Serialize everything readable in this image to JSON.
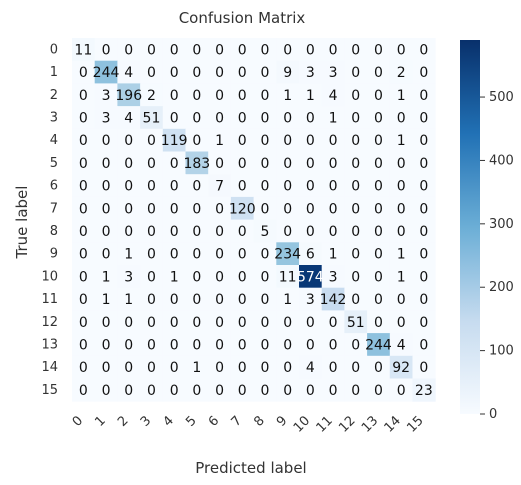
{
  "chart_data": {
    "type": "heatmap",
    "title": "Confusion Matrix",
    "xlabel": "Predicted label",
    "ylabel": "True label",
    "x_tick_labels": [
      "0",
      "1",
      "2",
      "3",
      "4",
      "5",
      "6",
      "7",
      "8",
      "9",
      "10",
      "11",
      "12",
      "13",
      "14",
      "15"
    ],
    "y_tick_labels": [
      "0",
      "1",
      "2",
      "3",
      "4",
      "5",
      "6",
      "7",
      "8",
      "9",
      "10",
      "11",
      "12",
      "13",
      "14",
      "15"
    ],
    "matrix": [
      [
        11,
        0,
        0,
        0,
        0,
        0,
        0,
        0,
        0,
        0,
        0,
        0,
        0,
        0,
        0,
        0
      ],
      [
        0,
        244,
        4,
        0,
        0,
        0,
        0,
        0,
        0,
        9,
        3,
        3,
        0,
        0,
        2,
        0
      ],
      [
        0,
        3,
        196,
        2,
        0,
        0,
        0,
        0,
        0,
        1,
        1,
        4,
        0,
        0,
        1,
        0
      ],
      [
        0,
        3,
        4,
        51,
        0,
        0,
        0,
        0,
        0,
        0,
        0,
        1,
        0,
        0,
        0,
        0
      ],
      [
        0,
        0,
        0,
        0,
        119,
        0,
        1,
        0,
        0,
        0,
        0,
        0,
        0,
        0,
        1,
        0
      ],
      [
        0,
        0,
        0,
        0,
        0,
        183,
        0,
        0,
        0,
        0,
        0,
        0,
        0,
        0,
        0,
        0
      ],
      [
        0,
        0,
        0,
        0,
        0,
        0,
        7,
        0,
        0,
        0,
        0,
        0,
        0,
        0,
        0,
        0
      ],
      [
        0,
        0,
        0,
        0,
        0,
        0,
        0,
        120,
        0,
        0,
        0,
        0,
        0,
        0,
        0,
        0
      ],
      [
        0,
        0,
        0,
        0,
        0,
        0,
        0,
        0,
        5,
        0,
        0,
        0,
        0,
        0,
        0,
        0
      ],
      [
        0,
        0,
        1,
        0,
        0,
        0,
        0,
        0,
        0,
        234,
        6,
        1,
        0,
        0,
        1,
        0
      ],
      [
        0,
        1,
        3,
        0,
        1,
        0,
        0,
        0,
        0,
        11,
        574,
        3,
        0,
        0,
        1,
        0
      ],
      [
        0,
        1,
        1,
        0,
        0,
        0,
        0,
        0,
        0,
        1,
        3,
        142,
        0,
        0,
        0,
        0
      ],
      [
        0,
        0,
        0,
        0,
        0,
        0,
        0,
        0,
        0,
        0,
        0,
        0,
        51,
        0,
        0,
        0
      ],
      [
        0,
        0,
        0,
        0,
        0,
        0,
        0,
        0,
        0,
        0,
        0,
        0,
        0,
        244,
        4,
        0
      ],
      [
        0,
        0,
        0,
        0,
        0,
        1,
        0,
        0,
        0,
        0,
        4,
        0,
        0,
        0,
        92,
        0
      ],
      [
        0,
        0,
        0,
        0,
        0,
        0,
        0,
        0,
        0,
        0,
        0,
        0,
        0,
        0,
        0,
        23
      ]
    ],
    "colorbar": {
      "ticks": [
        0,
        100,
        200,
        300,
        400,
        500
      ],
      "range": [
        0,
        590
      ],
      "colormap": "Blues"
    },
    "grid": false
  }
}
